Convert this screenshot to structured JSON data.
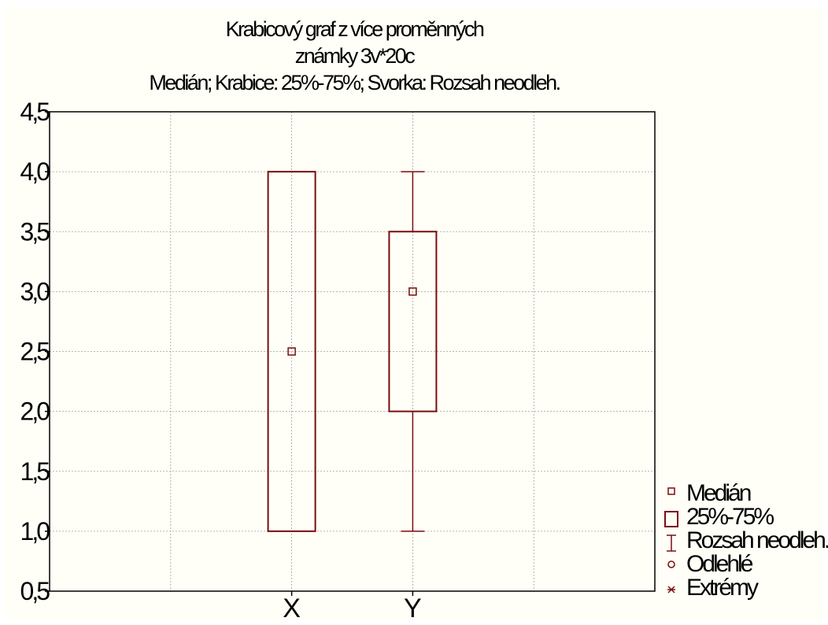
{
  "chart_data": {
    "type": "box",
    "title": [
      "Krabicový graf z více proměnných",
      "známky 3v*20c",
      "Medián; Krabice: 25%-75%; Svorka: Rozsah neodleh."
    ],
    "categories": [
      "X",
      "Y"
    ],
    "boxes": [
      {
        "name": "X",
        "median": 2.5,
        "q1": 1.0,
        "q3": 4.0,
        "whisker_low": 1.0,
        "whisker_high": 4.0
      },
      {
        "name": "Y",
        "median": 3.0,
        "q1": 2.0,
        "q3": 3.5,
        "whisker_low": 1.0,
        "whisker_high": 4.0
      }
    ],
    "ylim": [
      0.5,
      4.5
    ],
    "yticks": [
      "0,5",
      "1,0",
      "1,5",
      "2,0",
      "2,5",
      "3,0",
      "3,5",
      "4,0",
      "4,5"
    ],
    "grid": true,
    "legend_position": "bottom-right",
    "legend": [
      {
        "symbol": "median-square",
        "label": "Medián"
      },
      {
        "symbol": "box",
        "label": "25%-75%"
      },
      {
        "symbol": "whisker",
        "label": "Rozsah neodleh."
      },
      {
        "symbol": "circle",
        "label": "Odlehlé"
      },
      {
        "symbol": "star",
        "label": "Extrémy"
      }
    ],
    "colors": {
      "box": "#7a0c0c",
      "grid": "#a0a0a0",
      "axis": "#000000"
    }
  }
}
